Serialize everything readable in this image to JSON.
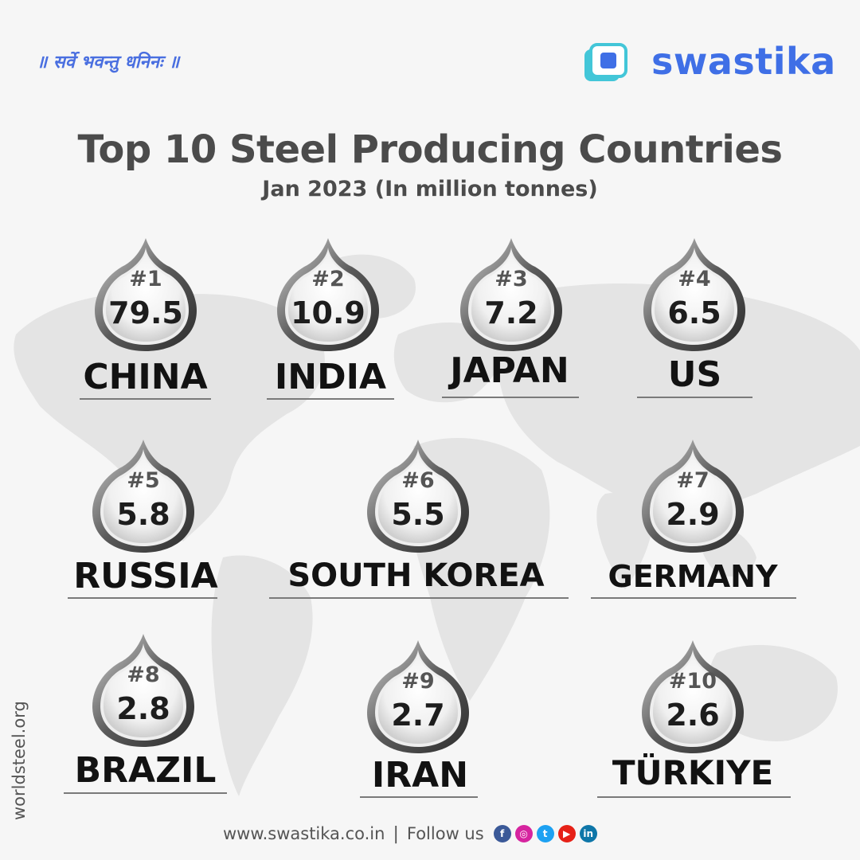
{
  "tagline": "॥ सर्वे भवन्तु धनिनः ॥",
  "brand": {
    "name": "swastika",
    "color": "#3f6fe6",
    "logo_icon": "swastika-logo-icon"
  },
  "title": "Top 10 Steel Producing Countries",
  "subtitle": "Jan 2023 (In million tonnes)",
  "items": [
    {
      "rank": "#1",
      "value": "79.5",
      "country": "CHINA"
    },
    {
      "rank": "#2",
      "value": "10.9",
      "country": "INDIA"
    },
    {
      "rank": "#3",
      "value": "7.2",
      "country": "JAPAN"
    },
    {
      "rank": "#4",
      "value": "6.5",
      "country": "US"
    },
    {
      "rank": "#5",
      "value": "5.8",
      "country": "RUSSIA"
    },
    {
      "rank": "#6",
      "value": "5.5",
      "country": "SOUTH KOREA"
    },
    {
      "rank": "#7",
      "value": "2.9",
      "country": "GERMANY"
    },
    {
      "rank": "#8",
      "value": "2.8",
      "country": "BRAZIL"
    },
    {
      "rank": "#9",
      "value": "2.7",
      "country": "IRAN"
    },
    {
      "rank": "#10",
      "value": "2.6",
      "country": "TÜRKIYE"
    }
  ],
  "source": "worldsteel.org",
  "footer": {
    "website": "www.swastika.co.in",
    "separator": "|",
    "follow_label": "Follow us",
    "social": [
      {
        "icon": "facebook-icon",
        "glyph": "f",
        "color": "#3b5998"
      },
      {
        "icon": "instagram-icon",
        "glyph": "◎",
        "color": "#d6249f"
      },
      {
        "icon": "twitter-icon",
        "glyph": "t",
        "color": "#1da1f2"
      },
      {
        "icon": "youtube-icon",
        "glyph": "▶",
        "color": "#e62117"
      },
      {
        "icon": "linkedin-icon",
        "glyph": "in",
        "color": "#0e76a8"
      }
    ]
  }
}
